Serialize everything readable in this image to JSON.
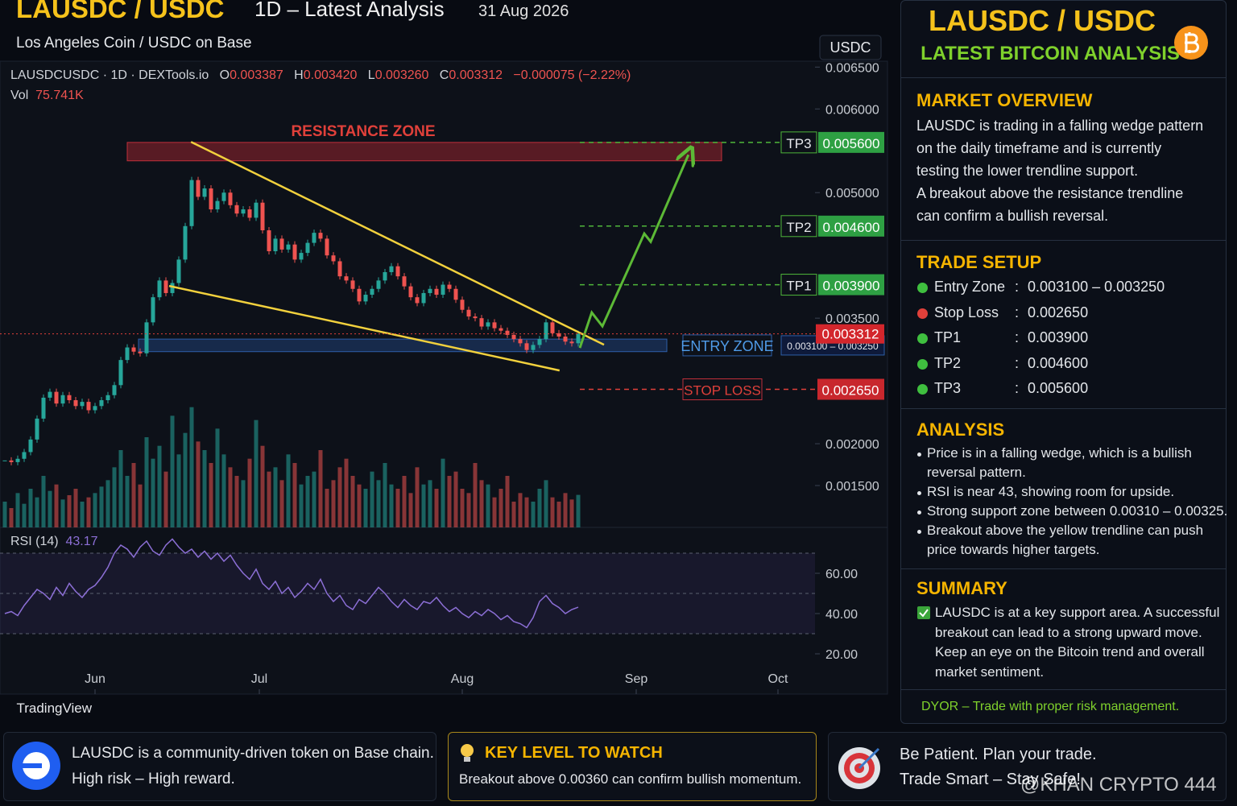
{
  "header": {
    "title": "LAUSDC / USDC",
    "subtitle": "1D – Latest Analysis",
    "date": "31 Aug 2026",
    "pair_name": "Los Angeles Coin / USDC on Base",
    "currency": "USDC"
  },
  "chart_data": {
    "type": "candlestick",
    "legend": {
      "symbol": "LAUSDCUSDC · 1D · DEXTools.io",
      "o_key": "O",
      "open": "0.003387",
      "h_key": "H",
      "high": "0.003420",
      "l_key": "L",
      "low": "0.003260",
      "c_key": "C",
      "close": "0.003312",
      "change": "−0.000075 (−2.22%)",
      "vol_key": "Vol",
      "vol": "75.741K"
    },
    "values": [
      0.0018,
      0.00178,
      0.00182,
      0.0019,
      0.00205,
      0.0023,
      0.00255,
      0.00262,
      0.00248,
      0.00258,
      0.00252,
      0.00245,
      0.0025,
      0.0024,
      0.00245,
      0.00252,
      0.00258,
      0.0027,
      0.003,
      0.00315,
      0.0031,
      0.00308,
      0.00345,
      0.00375,
      0.00395,
      0.0038,
      0.00392,
      0.0042,
      0.0046,
      0.00515,
      0.00495,
      0.00505,
      0.0048,
      0.0049,
      0.005,
      0.00485,
      0.00475,
      0.0048,
      0.0047,
      0.00488,
      0.00455,
      0.0043,
      0.00445,
      0.00432,
      0.00438,
      0.0042,
      0.00428,
      0.0044,
      0.00452,
      0.00445,
      0.00425,
      0.00418,
      0.004,
      0.00395,
      0.00385,
      0.0037,
      0.00378,
      0.00385,
      0.00395,
      0.00405,
      0.00412,
      0.004,
      0.00388,
      0.00375,
      0.00368,
      0.0038,
      0.00385,
      0.00378,
      0.0039,
      0.00385,
      0.00372,
      0.0036,
      0.00352,
      0.0035,
      0.0034,
      0.00345,
      0.00338,
      0.00335,
      0.0033,
      0.00325,
      0.0032,
      0.00312,
      0.00318,
      0.00325,
      0.00345,
      0.00332,
      0.00328,
      0.00322,
      0.0032,
      0.003312
    ],
    "color_up": "#26a69a",
    "color_down": "#ef5350",
    "xlim": [
      -0.75,
      125
    ],
    "xticks": [
      {
        "value": 14,
        "label": "Jun"
      },
      {
        "value": 39.5,
        "label": "Jul"
      },
      {
        "value": 71,
        "label": "Aug"
      },
      {
        "value": 98,
        "label": "Sep"
      },
      {
        "value": 120,
        "label": "Oct"
      }
    ],
    "ylim": [
      0.001,
      0.00658
    ],
    "yticks": [
      {
        "value": 0.0065,
        "label": "0.006500"
      },
      {
        "value": 0.006,
        "label": "0.006000"
      },
      {
        "value": 0.005,
        "label": "0.005000"
      },
      {
        "value": 0.0035,
        "label": "0.003500"
      },
      {
        "value": 0.002,
        "label": "0.002000"
      },
      {
        "value": 0.0015,
        "label": "0.001500"
      }
    ],
    "volume": {
      "values": [
        60,
        45,
        80,
        55,
        90,
        70,
        120,
        85,
        100,
        65,
        75,
        90,
        60,
        70,
        80,
        95,
        110,
        140,
        180,
        120,
        150,
        100,
        210,
        160,
        190,
        130,
        260,
        170,
        220,
        280,
        200,
        180,
        150,
        230,
        170,
        140,
        120,
        110,
        160,
        250,
        190,
        130,
        140,
        110,
        170,
        150,
        100,
        120,
        130,
        180,
        90,
        110,
        140,
        160,
        120,
        100,
        90,
        130,
        110,
        150,
        100,
        90,
        120,
        80,
        140,
        100,
        110,
        90,
        160,
        120,
        130,
        90,
        80,
        150,
        110,
        100,
        70,
        90,
        120,
        60,
        80,
        70,
        60,
        90,
        110,
        70,
        60,
        80,
        65,
        75.741
      ],
      "ylim": [
        0,
        300
      ]
    },
    "rsi": {
      "label": "RSI (14)",
      "color": "#8c6fd6",
      "ylim": [
        12.4,
        80
      ],
      "bands": [
        30,
        50,
        70
      ],
      "yticks": [
        {
          "value": 60,
          "label": "60.00"
        },
        {
          "value": 40,
          "label": "40.00"
        },
        {
          "value": 20,
          "label": "20.00"
        }
      ],
      "values": [
        40,
        41,
        39,
        44,
        48,
        52,
        50,
        47,
        53,
        49,
        55,
        51,
        48,
        52,
        54,
        58,
        63,
        70,
        74,
        72,
        68,
        73,
        76,
        71,
        69,
        74,
        77,
        73,
        70,
        72,
        68,
        71,
        67,
        70,
        66,
        69,
        64,
        60,
        57,
        62,
        55,
        52,
        56,
        50,
        53,
        48,
        51,
        55,
        52,
        57,
        50,
        46,
        49,
        44,
        42,
        47,
        45,
        49,
        53,
        50,
        46,
        43,
        47,
        44,
        42,
        46,
        45,
        48,
        44,
        41,
        43,
        40,
        38,
        41,
        39,
        42,
        40,
        37,
        39,
        36,
        35,
        33,
        38,
        46,
        49,
        45,
        43,
        40,
        42,
        43.17
      ]
    },
    "current_price": {
      "value": 0.003312,
      "label": "0.003312"
    },
    "levels": [
      {
        "name": "TP3",
        "value": 0.0056,
        "label": "0.005600"
      },
      {
        "name": "TP2",
        "value": 0.0046,
        "label": "0.004600"
      },
      {
        "name": "TP1",
        "value": 0.0039,
        "label": "0.003900"
      }
    ],
    "stop_loss": {
      "name": "STOP LOSS",
      "value": 0.00265,
      "label": "0.002650"
    },
    "entry_zone": {
      "name": "ENTRY ZONE",
      "range": [
        0.0031,
        0.00325
      ],
      "label": "0.003100 – 0.003250"
    },
    "resistance_zone": {
      "name": "RESISTANCE ZONE",
      "range": [
        0.00538,
        0.0056
      ]
    },
    "trendlines": [
      {
        "x": [
          28.9,
          93
        ],
        "y": [
          0.005606,
          0.003183
        ],
        "color": "#f2d13d"
      },
      {
        "x": [
          25.5,
          86.1
        ],
        "y": [
          0.003885,
          0.002875
        ],
        "color": "#f2d13d"
      }
    ],
    "projection": {
      "x": [
        89.25,
        91.1,
        92.75,
        99.25,
        100.25,
        106.1
      ],
      "y": [
        0.003144,
        0.003567,
        0.003404,
        0.00451,
        0.004413,
        0.005452
      ],
      "color": "#5cb936"
    }
  },
  "branding": "TradingView",
  "panel": {
    "title": "LAUSDC / USDC",
    "subtitle": "LATEST BITCOIN ANALYSIS",
    "market_overview": {
      "heading": "MARKET OVERVIEW",
      "lines": [
        "LAUSDC is trading in a falling wedge pattern",
        "on the daily timeframe and is currently",
        "testing the lower trendline support.",
        "A breakout above the resistance trendline",
        "can confirm a bullish reversal."
      ]
    },
    "trade_setup": {
      "heading": "TRADE SETUP",
      "separator": ":",
      "rows": [
        {
          "label": "Entry Zone",
          "value": "0.003100 – 0.003250",
          "color": "#3fbf3f"
        },
        {
          "label": "Stop Loss",
          "value": "0.002650",
          "color": "#e0403a"
        },
        {
          "label": "TP1",
          "value": "0.003900",
          "color": "#3fbf3f"
        },
        {
          "label": "TP2",
          "value": "0.004600",
          "color": "#3fbf3f"
        },
        {
          "label": "TP3",
          "value": "0.005600",
          "color": "#3fbf3f"
        }
      ]
    },
    "analysis": {
      "heading": "ANALYSIS",
      "bullets": [
        [
          "Price is in a falling wedge, which is a bullish",
          "reversal pattern."
        ],
        [
          "RSI is near 43, showing room for upside."
        ],
        [
          "Strong support zone between 0.00310 – 0.00325."
        ],
        [
          "Breakout above the yellow trendline can push",
          "price towards higher targets."
        ]
      ]
    },
    "summary": {
      "heading": "SUMMARY",
      "lines": [
        "LAUSDC is at a key support area. A successful",
        "breakout can lead to a strong upward move.",
        "Keep an eye on the Bitcoin trend and overall",
        "market sentiment."
      ]
    },
    "dyor": "DYOR – Trade with proper risk management."
  },
  "footer": {
    "about": [
      "LAUSDC is a community-driven token on Base chain.",
      "High risk – High reward."
    ],
    "key_level": {
      "title": "KEY LEVEL TO WATCH",
      "text": "Breakout above 0.00360 can confirm bullish momentum."
    },
    "advice": [
      "Be Patient. Plan your trade.",
      "Trade Smart – Stay Safe!"
    ],
    "watermark": "@KHAN CRYPTO 444"
  }
}
